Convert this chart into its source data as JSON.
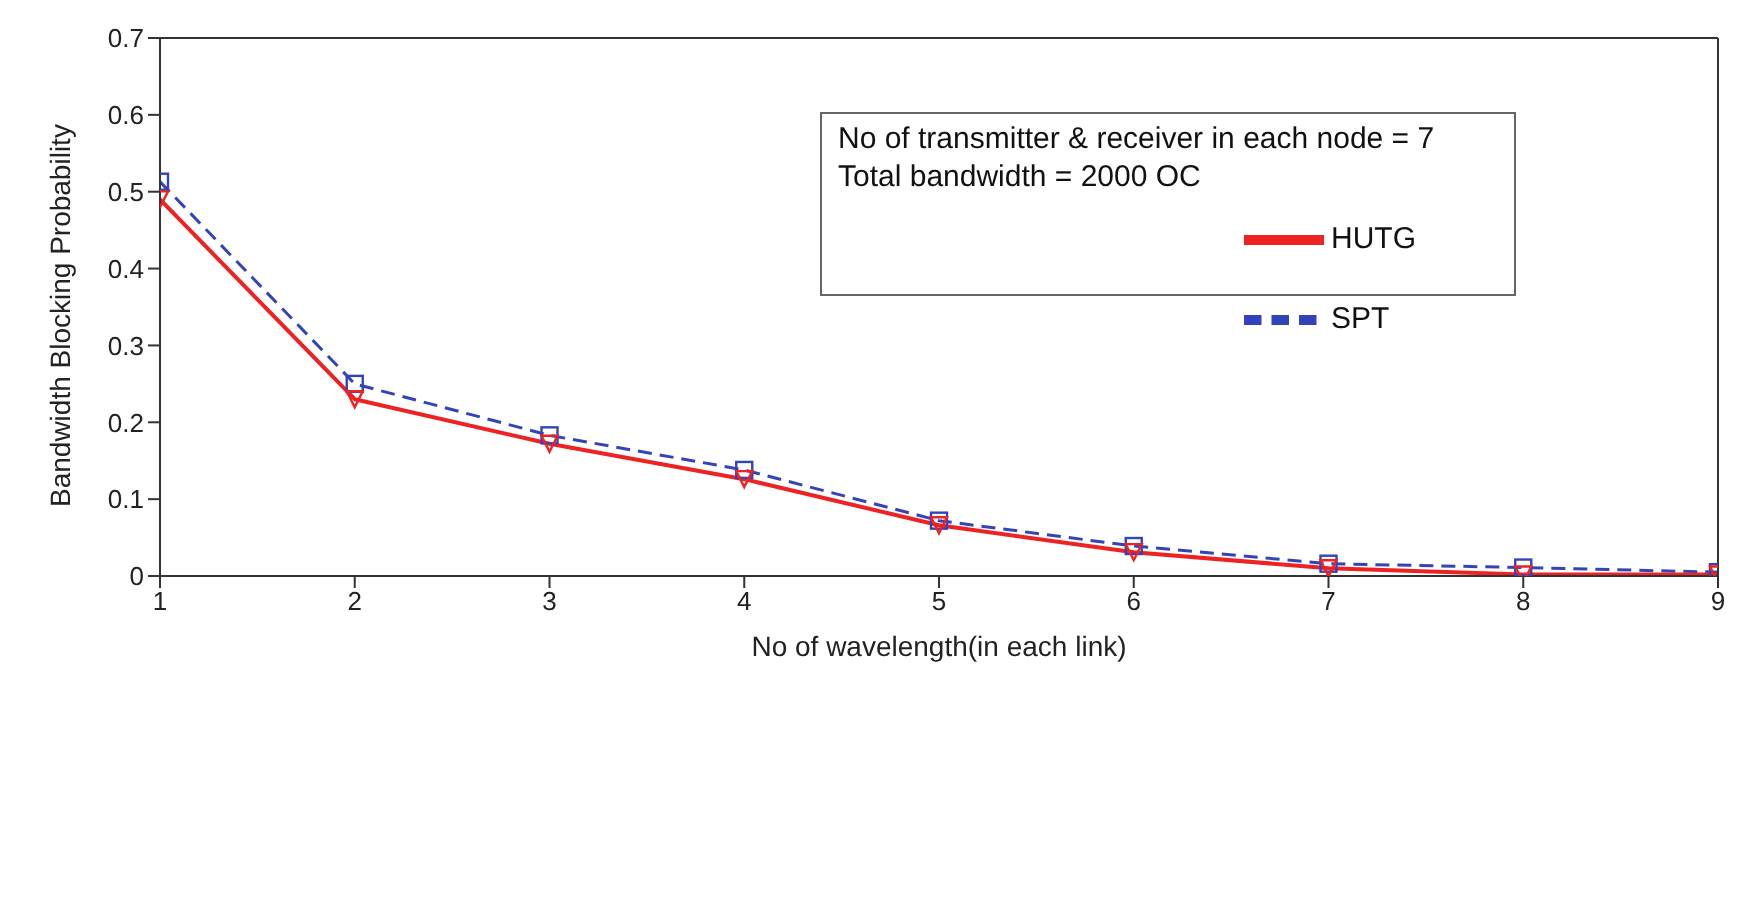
{
  "chart_data": {
    "type": "line",
    "xlabel": "No of wavelength(in each link)",
    "ylabel": "Bandwidth Blocking Probability",
    "x": [
      1,
      2,
      3,
      4,
      5,
      6,
      7,
      8,
      9
    ],
    "series": [
      {
        "name": "SPT",
        "color": "#3344bb",
        "line_style": "dashed",
        "marker": "square",
        "values": [
          0.513,
          0.25,
          0.183,
          0.138,
          0.072,
          0.039,
          0.016,
          0.011,
          0.005
        ]
      },
      {
        "name": "HUTG",
        "color": "#ee2222",
        "line_style": "solid",
        "marker": "triangle",
        "values": [
          0.49,
          0.23,
          0.172,
          0.126,
          0.066,
          0.031,
          0.01,
          0.002,
          0.002
        ]
      }
    ],
    "annotations": [
      "No of transmitter & receiver in each node = 7",
      "Total bandwidth = 2000 OC"
    ],
    "xlim": [
      1,
      9
    ],
    "xticks": [
      1,
      2,
      3,
      4,
      5,
      6,
      7,
      8,
      9
    ],
    "ylim": [
      0,
      0.7
    ],
    "yticks": [
      0,
      0.1,
      0.2,
      0.3,
      0.4,
      0.5,
      0.6,
      0.7
    ],
    "legend": "top right"
  }
}
